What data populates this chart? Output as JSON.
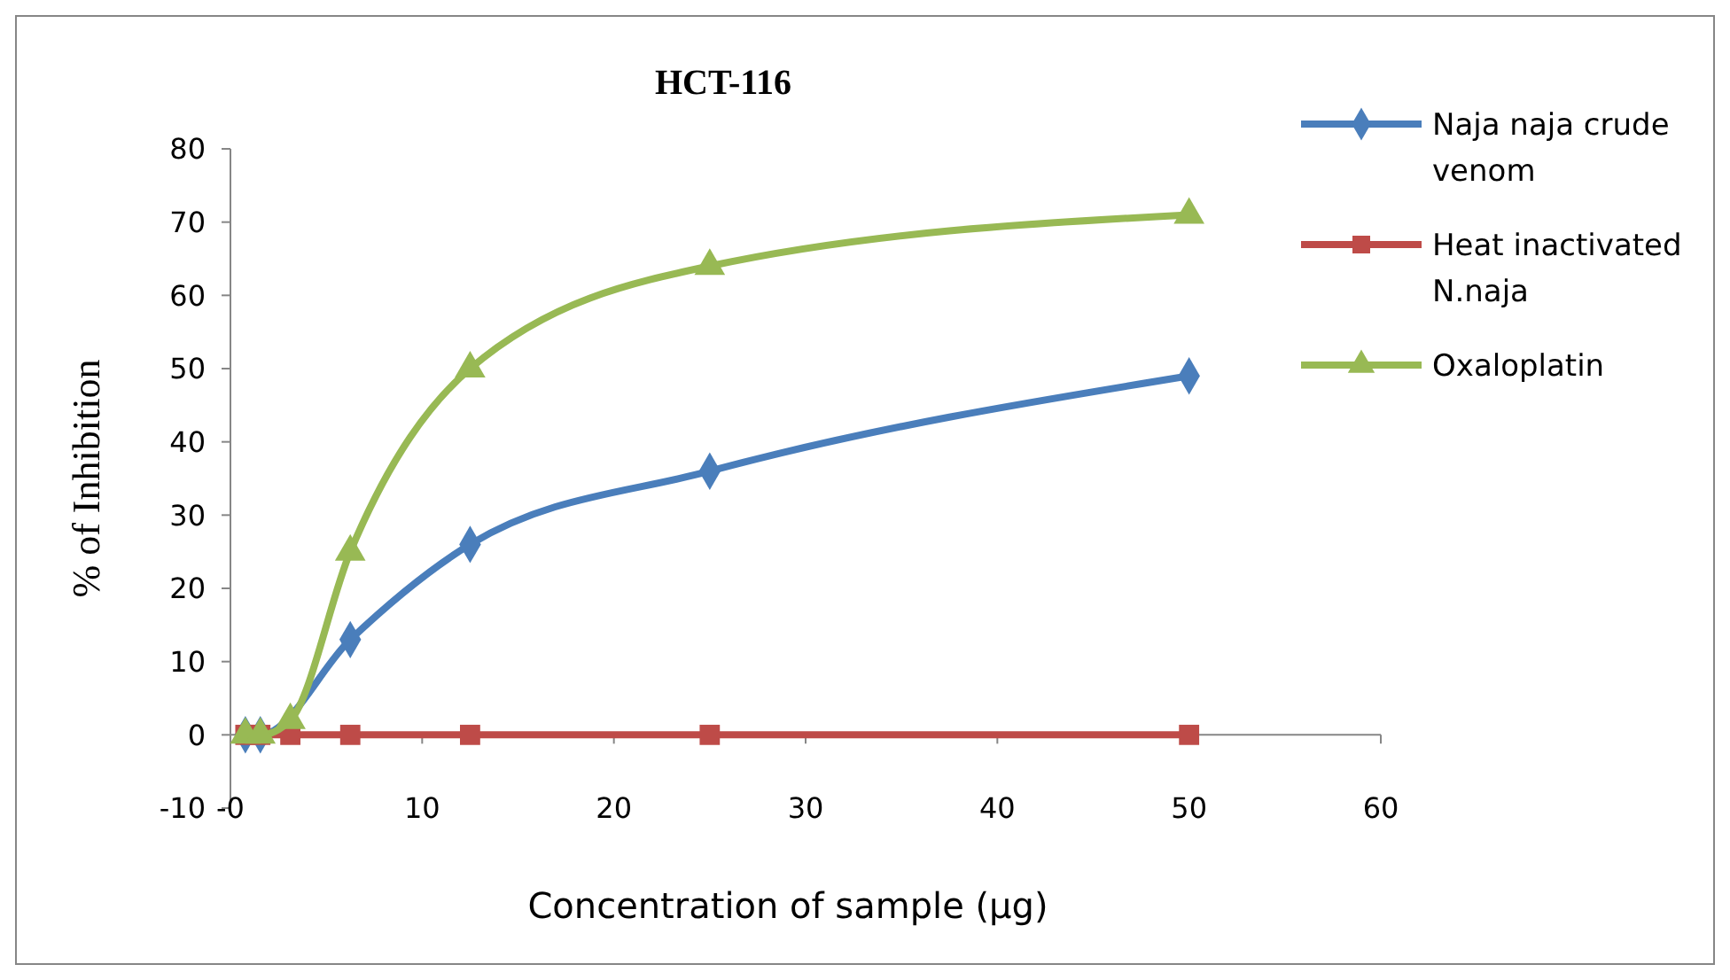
{
  "chart_data": {
    "type": "line",
    "title": "HCT-116",
    "xlabel": "Concentration of sample (µg)",
    "ylabel": "% of Inhibition",
    "x": [
      0.78,
      1.56,
      3.125,
      6.25,
      12.5,
      25,
      50
    ],
    "xlim": [
      0,
      60
    ],
    "xticks": [
      {
        "value": 0,
        "label": "-0"
      },
      10,
      20,
      30,
      40,
      50,
      60
    ],
    "ylim": [
      -10,
      80
    ],
    "yticks": [
      -10,
      0,
      10,
      20,
      30,
      40,
      50,
      60,
      70,
      80
    ],
    "grid": false,
    "legend": "right",
    "line_style": "solid",
    "series": [
      {
        "name": "Naja naja crude venom",
        "color": "#4a7ebb",
        "marker": "diamond",
        "values": [
          0,
          0,
          null,
          13,
          26,
          36,
          49
        ]
      },
      {
        "name": "Heat inactivated N.naja",
        "color": "#be4b48",
        "marker": "square",
        "values": [
          0,
          0,
          0,
          0,
          0,
          0,
          0
        ]
      },
      {
        "name": "Oxaloplatin",
        "color": "#98b954",
        "marker": "triangle",
        "values": [
          0,
          0,
          2,
          25,
          50,
          64,
          71
        ]
      }
    ]
  }
}
